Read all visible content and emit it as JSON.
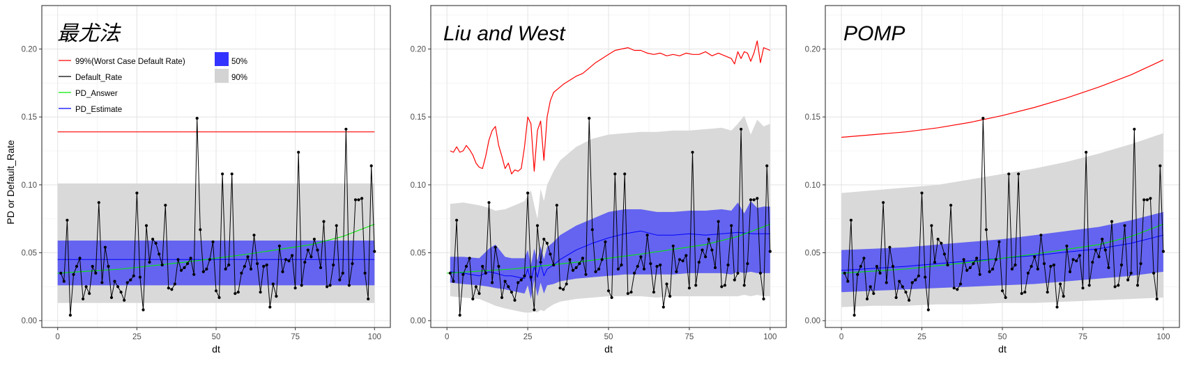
{
  "chart_data": [
    {
      "type": "line",
      "title": "最尤法",
      "xlabel": "dt",
      "ylabel": "PD or Default_Rate",
      "xlim": [
        -5,
        105
      ],
      "ylim": [
        -0.005,
        0.232
      ],
      "xticks": [
        0,
        25,
        50,
        75,
        100
      ],
      "yticks": [
        0.0,
        0.05,
        0.1,
        0.15,
        0.2
      ],
      "ytick_labels": [
        "0.00",
        "0.05",
        "0.10",
        "0.15",
        "0.20"
      ],
      "grid": true,
      "legend": {
        "placement": "top-left",
        "lines": [
          {
            "label": "99%(Worst Case Default Rate)",
            "color": "#ff0000"
          },
          {
            "label": "Default_Rate",
            "color": "#000000"
          },
          {
            "label": "PD_Answer",
            "color": "#00ee00"
          },
          {
            "label": "PD_Estimate",
            "color": "#0000ff"
          }
        ],
        "bands": [
          {
            "label": "50%",
            "color": "#3333ff"
          },
          {
            "label": "90%",
            "color": "#d3d3d3"
          }
        ]
      },
      "band90": {
        "x": [
          0,
          100
        ],
        "low": [
          0.013,
          0.013
        ],
        "high": [
          0.101,
          0.101
        ]
      },
      "band50": {
        "x": [
          0,
          100
        ],
        "low": [
          0.026,
          0.026
        ],
        "high": [
          0.059,
          0.059
        ]
      },
      "worst_case": {
        "x": [
          0,
          100
        ],
        "y": [
          0.139,
          0.139
        ]
      },
      "pd_estimate": {
        "x": [
          0,
          100
        ],
        "y": [
          0.045,
          0.045
        ]
      },
      "pd_answer": {
        "x": [
          0,
          20,
          40,
          60,
          80,
          90,
          100
        ],
        "y": [
          0.035,
          0.038,
          0.043,
          0.049,
          0.056,
          0.062,
          0.071
        ]
      }
    },
    {
      "type": "line",
      "title": "Liu and West",
      "xlabel": "dt",
      "ylabel": "",
      "xlim": [
        -5,
        105
      ],
      "ylim": [
        -0.005,
        0.232
      ],
      "xticks": [
        0,
        25,
        50,
        75,
        100
      ],
      "yticks": [
        0.0,
        0.05,
        0.1,
        0.15,
        0.2
      ],
      "ytick_labels": [
        "0.00",
        "0.05",
        "0.10",
        "0.15",
        "0.20"
      ],
      "grid": true,
      "band90": {
        "x": [
          1,
          5,
          10,
          13,
          15,
          18,
          20,
          22,
          24,
          26,
          27,
          28,
          29,
          30,
          31,
          33,
          35,
          40,
          45,
          50,
          55,
          60,
          65,
          70,
          75,
          80,
          85,
          88,
          90,
          92,
          94,
          96,
          98,
          100
        ],
        "low": [
          0.018,
          0.017,
          0.016,
          0.013,
          0.011,
          0.009,
          0.008,
          0.007,
          0.006,
          0.006,
          0.007,
          0.006,
          0.008,
          0.007,
          0.009,
          0.012,
          0.014,
          0.016,
          0.017,
          0.018,
          0.018,
          0.018,
          0.017,
          0.018,
          0.018,
          0.018,
          0.018,
          0.018,
          0.018,
          0.019,
          0.018,
          0.019,
          0.018,
          0.018
        ],
        "high": [
          0.086,
          0.087,
          0.085,
          0.083,
          0.081,
          0.082,
          0.084,
          0.086,
          0.088,
          0.096,
          0.085,
          0.075,
          0.097,
          0.088,
          0.1,
          0.11,
          0.118,
          0.128,
          0.134,
          0.137,
          0.138,
          0.139,
          0.139,
          0.14,
          0.14,
          0.141,
          0.142,
          0.14,
          0.145,
          0.151,
          0.137,
          0.148,
          0.143,
          0.145
        ]
      },
      "band50": {
        "x": [
          1,
          5,
          10,
          13,
          15,
          18,
          20,
          22,
          24,
          25,
          26,
          27,
          28,
          29,
          30,
          31,
          33,
          35,
          40,
          45,
          50,
          55,
          60,
          65,
          70,
          75,
          80,
          85,
          88,
          90,
          92,
          94,
          96,
          98,
          100
        ],
        "low": [
          0.028,
          0.027,
          0.026,
          0.025,
          0.024,
          0.023,
          0.022,
          0.021,
          0.02,
          0.026,
          0.016,
          0.03,
          0.018,
          0.028,
          0.02,
          0.026,
          0.027,
          0.029,
          0.031,
          0.032,
          0.033,
          0.034,
          0.034,
          0.034,
          0.034,
          0.035,
          0.035,
          0.035,
          0.034,
          0.036,
          0.035,
          0.036,
          0.035,
          0.035,
          0.035
        ],
        "high": [
          0.047,
          0.047,
          0.046,
          0.053,
          0.056,
          0.047,
          0.046,
          0.046,
          0.046,
          0.052,
          0.041,
          0.053,
          0.044,
          0.055,
          0.045,
          0.054,
          0.058,
          0.063,
          0.07,
          0.075,
          0.08,
          0.082,
          0.082,
          0.08,
          0.08,
          0.081,
          0.081,
          0.082,
          0.081,
          0.087,
          0.079,
          0.088,
          0.083,
          0.084,
          0.084
        ]
      },
      "worst_case": {
        "x": [
          1,
          2,
          3,
          4,
          5,
          6,
          7,
          8,
          9,
          10,
          11,
          12,
          13,
          14,
          15,
          16,
          17,
          18,
          19,
          20,
          21,
          22,
          23,
          24,
          25,
          26,
          27,
          28,
          29,
          30,
          31,
          32,
          33,
          34,
          35,
          36,
          38,
          40,
          42,
          44,
          46,
          48,
          50,
          52,
          54,
          56,
          58,
          60,
          62,
          64,
          66,
          68,
          70,
          72,
          74,
          76,
          78,
          80,
          82,
          84,
          86,
          88,
          89,
          90,
          91,
          92,
          93,
          94,
          95,
          96,
          97,
          98,
          99,
          100
        ],
        "y": [
          0.125,
          0.124,
          0.128,
          0.124,
          0.125,
          0.129,
          0.126,
          0.122,
          0.116,
          0.113,
          0.112,
          0.121,
          0.133,
          0.14,
          0.143,
          0.129,
          0.121,
          0.112,
          0.116,
          0.108,
          0.111,
          0.11,
          0.112,
          0.128,
          0.15,
          0.145,
          0.11,
          0.14,
          0.147,
          0.118,
          0.15,
          0.162,
          0.168,
          0.17,
          0.172,
          0.174,
          0.177,
          0.18,
          0.182,
          0.186,
          0.19,
          0.193,
          0.196,
          0.199,
          0.2,
          0.201,
          0.199,
          0.199,
          0.197,
          0.196,
          0.197,
          0.195,
          0.196,
          0.195,
          0.197,
          0.196,
          0.196,
          0.198,
          0.195,
          0.197,
          0.195,
          0.193,
          0.189,
          0.198,
          0.193,
          0.198,
          0.197,
          0.191,
          0.197,
          0.206,
          0.19,
          0.201,
          0.2,
          0.199
        ]
      },
      "pd_estimate": {
        "x": [
          1,
          5,
          10,
          13,
          15,
          18,
          20,
          22,
          24,
          25,
          26,
          27,
          28,
          29,
          30,
          31,
          33,
          35,
          40,
          45,
          50,
          55,
          60,
          65,
          70,
          75,
          80,
          85,
          90,
          95,
          100
        ],
        "y": [
          0.036,
          0.035,
          0.033,
          0.036,
          0.035,
          0.033,
          0.033,
          0.032,
          0.031,
          0.038,
          0.029,
          0.04,
          0.032,
          0.042,
          0.033,
          0.038,
          0.041,
          0.045,
          0.052,
          0.057,
          0.061,
          0.064,
          0.066,
          0.063,
          0.063,
          0.064,
          0.063,
          0.064,
          0.065,
          0.064,
          0.064
        ]
      },
      "pd_answer": {
        "x": [
          0,
          20,
          40,
          60,
          80,
          90,
          100
        ],
        "y": [
          0.035,
          0.038,
          0.043,
          0.049,
          0.056,
          0.062,
          0.071
        ]
      }
    },
    {
      "type": "line",
      "title": "POMP",
      "xlabel": "dt",
      "ylabel": "",
      "xlim": [
        -5,
        105
      ],
      "ylim": [
        -0.005,
        0.232
      ],
      "xticks": [
        0,
        25,
        50,
        75,
        100
      ],
      "yticks": [
        0.0,
        0.05,
        0.1,
        0.15,
        0.2
      ],
      "ytick_labels": [
        "0.00",
        "0.05",
        "0.10",
        "0.15",
        "0.20"
      ],
      "grid": true,
      "band90": {
        "x": [
          0,
          10,
          20,
          30,
          40,
          50,
          60,
          70,
          80,
          90,
          100
        ],
        "low": [
          0.01,
          0.011,
          0.011,
          0.012,
          0.012,
          0.013,
          0.013,
          0.014,
          0.015,
          0.016,
          0.017
        ],
        "high": [
          0.094,
          0.096,
          0.098,
          0.1,
          0.104,
          0.108,
          0.112,
          0.117,
          0.123,
          0.13,
          0.138
        ]
      },
      "band50": {
        "x": [
          0,
          10,
          20,
          30,
          40,
          50,
          60,
          70,
          80,
          90,
          100
        ],
        "low": [
          0.021,
          0.022,
          0.023,
          0.024,
          0.025,
          0.026,
          0.027,
          0.029,
          0.031,
          0.033,
          0.036
        ],
        "high": [
          0.052,
          0.053,
          0.054,
          0.056,
          0.058,
          0.06,
          0.063,
          0.066,
          0.069,
          0.074,
          0.08
        ]
      },
      "worst_case": {
        "x": [
          0,
          10,
          20,
          30,
          40,
          50,
          60,
          70,
          80,
          90,
          100
        ],
        "y": [
          0.135,
          0.137,
          0.139,
          0.142,
          0.146,
          0.151,
          0.157,
          0.164,
          0.172,
          0.181,
          0.192
        ]
      },
      "pd_estimate": {
        "x": [
          0,
          20,
          40,
          60,
          80,
          90,
          100
        ],
        "y": [
          0.037,
          0.04,
          0.044,
          0.048,
          0.053,
          0.057,
          0.063
        ]
      },
      "pd_answer": {
        "x": [
          0,
          20,
          40,
          60,
          80,
          90,
          100
        ],
        "y": [
          0.035,
          0.038,
          0.043,
          0.049,
          0.056,
          0.062,
          0.071
        ]
      }
    }
  ],
  "default_rate": {
    "x": [
      1,
      2,
      3,
      4,
      5,
      6,
      7,
      8,
      9,
      10,
      11,
      12,
      13,
      14,
      15,
      16,
      17,
      18,
      19,
      20,
      21,
      22,
      23,
      24,
      25,
      26,
      27,
      28,
      29,
      30,
      31,
      32,
      33,
      34,
      35,
      36,
      37,
      38,
      39,
      40,
      41,
      42,
      43,
      44,
      45,
      46,
      47,
      48,
      49,
      50,
      51,
      52,
      53,
      54,
      55,
      56,
      57,
      58,
      59,
      60,
      61,
      62,
      63,
      64,
      65,
      66,
      67,
      68,
      69,
      70,
      71,
      72,
      73,
      74,
      75,
      76,
      77,
      78,
      79,
      80,
      81,
      82,
      83,
      84,
      85,
      86,
      87,
      88,
      89,
      90,
      91,
      92,
      93,
      94,
      95,
      96,
      97,
      98,
      99,
      100
    ],
    "y": [
      0.035,
      0.029,
      0.074,
      0.004,
      0.034,
      0.04,
      0.046,
      0.016,
      0.025,
      0.02,
      0.04,
      0.035,
      0.087,
      0.028,
      0.054,
      0.04,
      0.017,
      0.029,
      0.025,
      0.021,
      0.015,
      0.028,
      0.03,
      0.033,
      0.094,
      0.032,
      0.008,
      0.07,
      0.043,
      0.06,
      0.057,
      0.049,
      0.041,
      0.085,
      0.024,
      0.023,
      0.027,
      0.045,
      0.037,
      0.039,
      0.042,
      0.046,
      0.034,
      0.149,
      0.067,
      0.036,
      0.038,
      0.045,
      0.058,
      0.022,
      0.017,
      0.108,
      0.038,
      0.041,
      0.108,
      0.02,
      0.021,
      0.035,
      0.04,
      0.047,
      0.038,
      0.063,
      0.042,
      0.021,
      0.04,
      0.041,
      0.01,
      0.027,
      0.018,
      0.055,
      0.036,
      0.045,
      0.044,
      0.048,
      0.024,
      0.124,
      0.026,
      0.043,
      0.052,
      0.047,
      0.06,
      0.052,
      0.039,
      0.073,
      0.025,
      0.026,
      0.041,
      0.07,
      0.03,
      0.035,
      0.141,
      0.026,
      0.042,
      0.089,
      0.089,
      0.09,
      0.035,
      0.016,
      0.114,
      0.051
    ]
  }
}
